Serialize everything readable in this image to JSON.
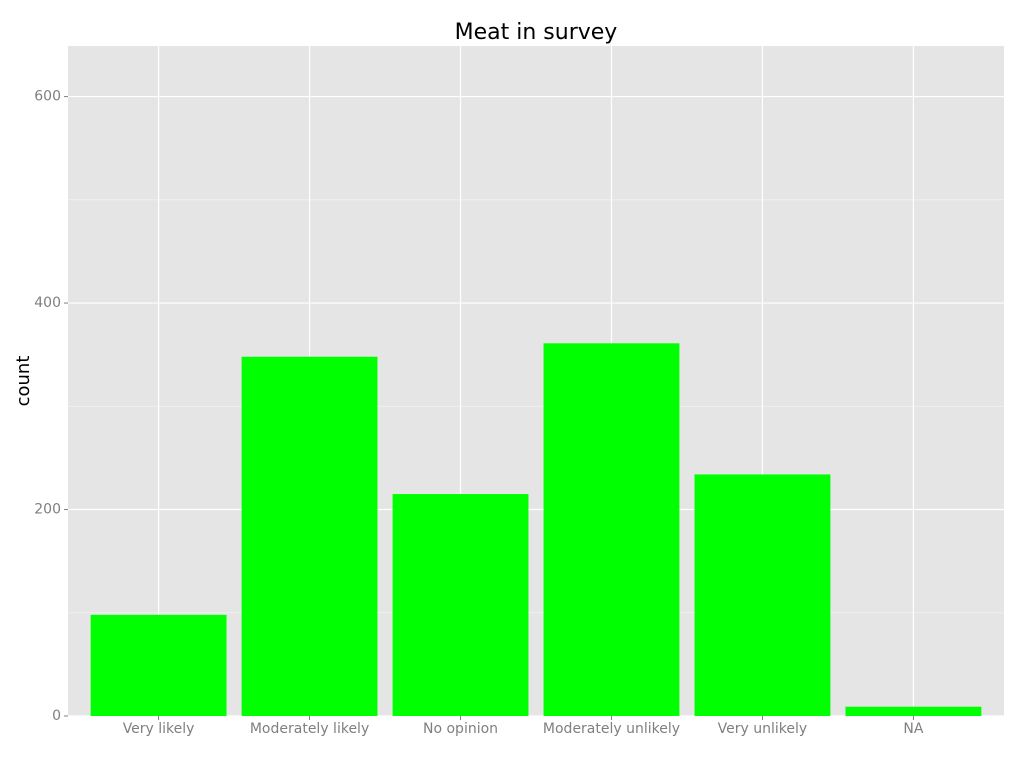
{
  "chart_data": {
    "type": "bar",
    "title": "Meat  in survey",
    "y_label": "count",
    "categories": [
      "Very likely",
      "Moderately likely",
      "No opinion",
      "Moderately unlikely",
      "Very unlikely",
      "NA"
    ],
    "values": [
      98,
      348,
      215,
      361,
      234,
      9
    ],
    "color": "#00ff00",
    "ylim": [
      0,
      649
    ],
    "yticks": [
      0,
      200,
      400,
      600
    ],
    "minor_yticks": [
      100,
      300,
      500
    ],
    "grid": true
  }
}
